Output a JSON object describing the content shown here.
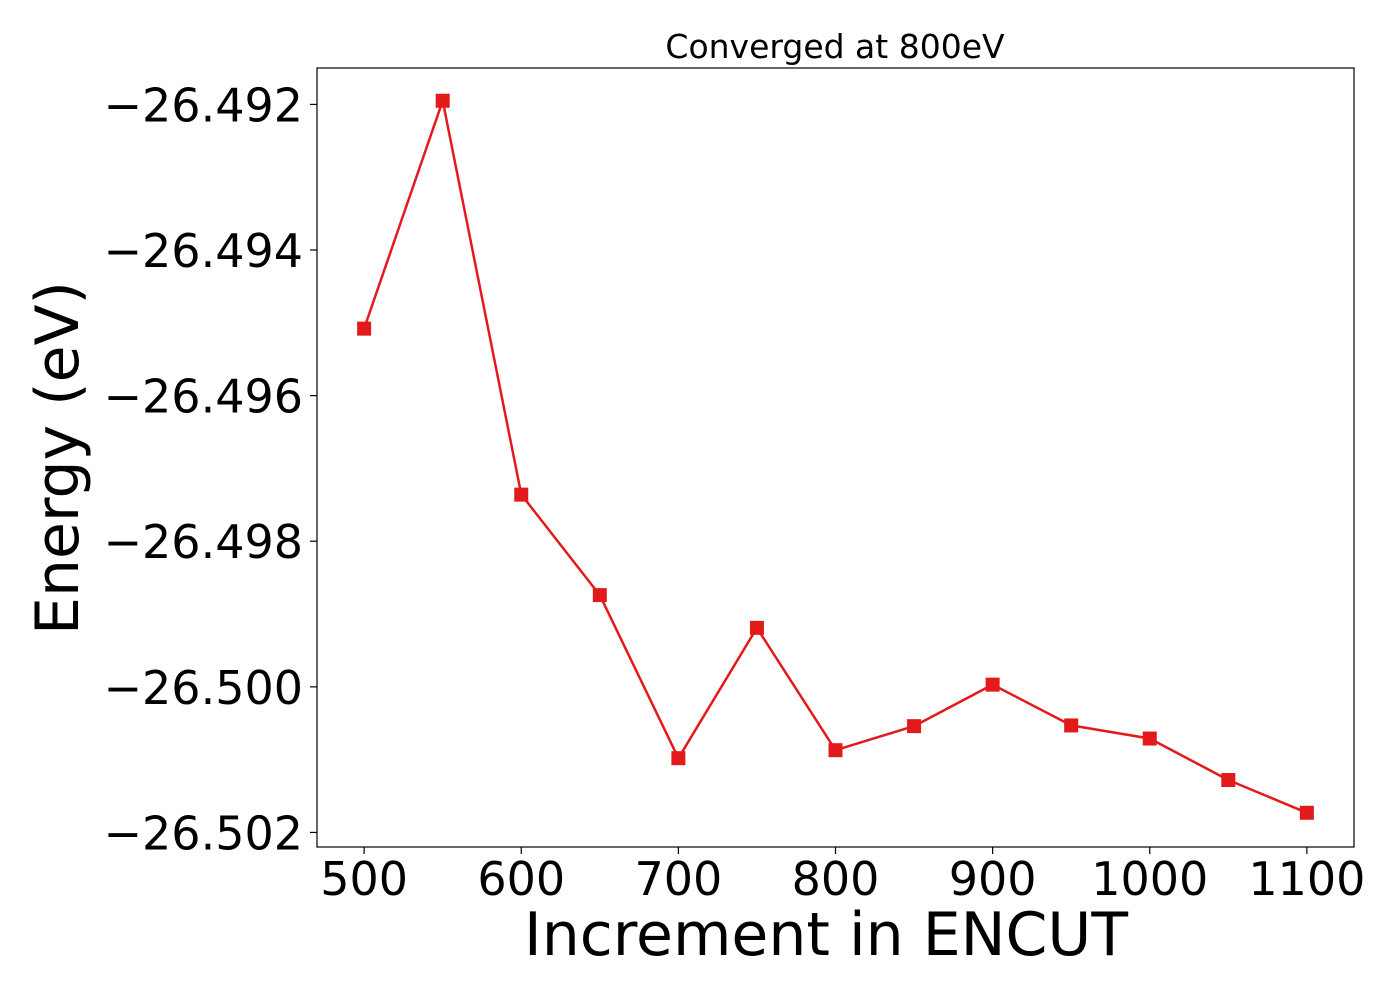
{
  "chart_data": {
    "type": "line",
    "title": "Converged at 800eV",
    "xlabel": "Increment in ENCUT",
    "ylabel": "Energy (eV)",
    "xlim": [
      470,
      1130
    ],
    "ylim": [
      -26.5022,
      -26.4915
    ],
    "xticks": [
      500,
      600,
      700,
      800,
      900,
      1000,
      1100
    ],
    "xtick_labels": [
      "500",
      "600",
      "700",
      "800",
      "900",
      "1000",
      "1100"
    ],
    "yticks": [
      -26.492,
      -26.494,
      -26.496,
      -26.498,
      -26.5,
      -26.502
    ],
    "ytick_labels": [
      "−26.492",
      "−26.494",
      "−26.496",
      "−26.498",
      "−26.500",
      "−26.502"
    ],
    "grid": false,
    "legend": "none",
    "series": [
      {
        "color": "#e31a1c",
        "marker": "square",
        "x": [
          500,
          550,
          600,
          650,
          700,
          750,
          800,
          850,
          900,
          950,
          1000,
          1050,
          1100
        ],
        "y": [
          -26.49508,
          -26.49195,
          -26.49736,
          -26.49874,
          -26.50098,
          -26.49919,
          -26.50087,
          -26.50054,
          -26.49997,
          -26.50053,
          -26.50071,
          -26.50128,
          -26.50173
        ]
      }
    ]
  }
}
